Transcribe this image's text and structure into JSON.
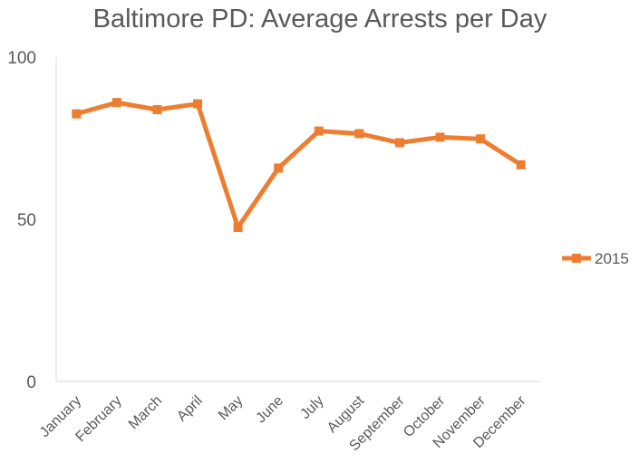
{
  "chart_data": {
    "type": "line",
    "title": "Baltimore PD: Average Arrests per Day",
    "xlabel": "",
    "ylabel": "",
    "categories": [
      "January",
      "February",
      "March",
      "April",
      "May",
      "June",
      "July",
      "August",
      "September",
      "October",
      "November",
      "December"
    ],
    "series": [
      {
        "name": "2015",
        "color": "#ED7D31",
        "marker": "square",
        "values": [
          82.5,
          86,
          83.8,
          85.6,
          47.5,
          65.8,
          77.2,
          76.4,
          73.6,
          75.3,
          74.8,
          66.8
        ]
      }
    ],
    "ylim": [
      0,
      100
    ],
    "yticks": [
      0,
      50,
      100
    ],
    "grid": false,
    "legend_position": "right"
  }
}
